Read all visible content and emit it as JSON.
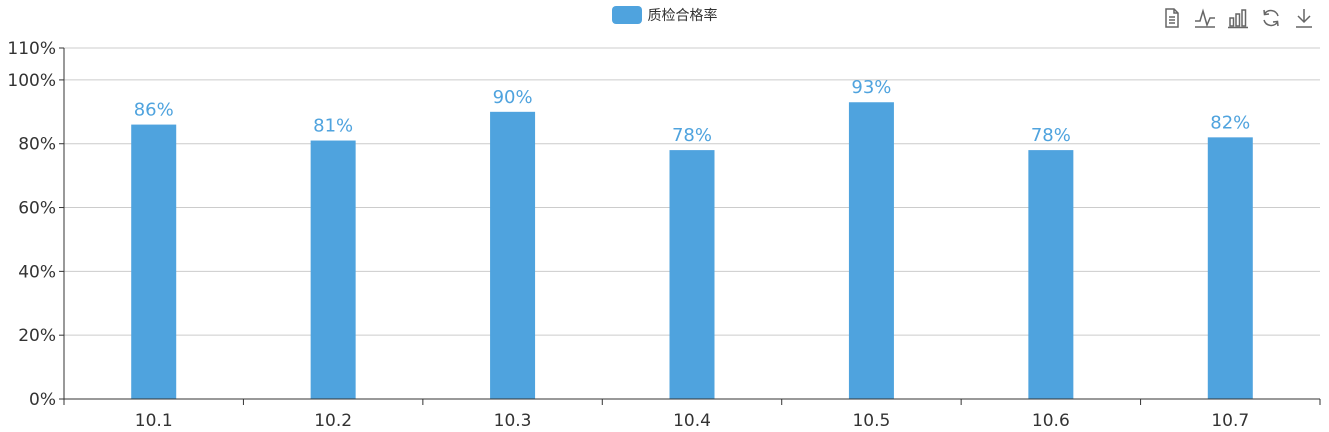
{
  "colors": {
    "bar": "#4fa3de",
    "label": "#4fa3de",
    "axis": "#333333",
    "grid": "#cccccc",
    "icon": "#666666"
  },
  "toolbox": {
    "icons": [
      "data-view-icon",
      "line-chart-icon",
      "bar-chart-icon",
      "restore-icon",
      "download-icon"
    ]
  },
  "chart_data": {
    "type": "bar",
    "categories": [
      "10.1",
      "10.2",
      "10.3",
      "10.4",
      "10.5",
      "10.6",
      "10.7"
    ],
    "series": [
      {
        "name": "质检合格率",
        "values": [
          86,
          81,
          90,
          78,
          93,
          78,
          82
        ]
      }
    ],
    "data_labels": [
      "86%",
      "81%",
      "90%",
      "78%",
      "93%",
      "78%",
      "82%"
    ],
    "yticks": [
      0,
      20,
      40,
      60,
      80,
      100,
      110
    ],
    "ytick_labels": [
      "0%",
      "20%",
      "40%",
      "60%",
      "80%",
      "100%",
      "110%"
    ],
    "ylim": [
      0,
      110
    ],
    "grid": true,
    "legend_position": "top-center"
  }
}
